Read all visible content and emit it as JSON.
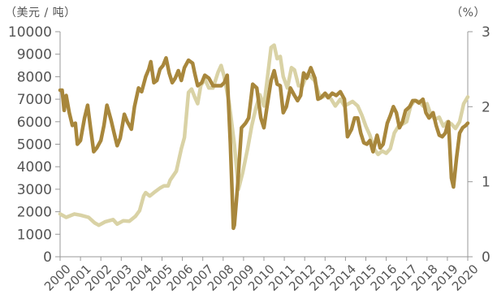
{
  "chart_data": {
    "type": "line",
    "left_unit": "（美元 / 吨）",
    "right_unit": "（%）",
    "y_left": {
      "min": 0,
      "max": 10000,
      "ticks": [
        0,
        1000,
        2000,
        3000,
        4000,
        5000,
        6000,
        7000,
        8000,
        9000,
        10000
      ]
    },
    "y_right": {
      "min": 0,
      "max": 3,
      "ticks": [
        0,
        1,
        2,
        3
      ]
    },
    "x": {
      "min": 2000,
      "max": 2020,
      "ticks": [
        2000,
        2001,
        2002,
        2003,
        2004,
        2005,
        2006,
        2007,
        2008,
        2009,
        2010,
        2011,
        2012,
        2013,
        2014,
        2015,
        2016,
        2017,
        2018,
        2019,
        2020
      ]
    },
    "colors": {
      "series_a": "#d9d2a5",
      "series_b": "#a8873c",
      "axis": "#999999",
      "text": "#555555"
    },
    "series": [
      {
        "axis": "left",
        "color": "#d9d2a5",
        "points": [
          [
            2000.0,
            1900
          ],
          [
            2000.3,
            1750
          ],
          [
            2000.7,
            1900
          ],
          [
            2001.0,
            1850
          ],
          [
            2001.4,
            1750
          ],
          [
            2001.7,
            1500
          ],
          [
            2001.9,
            1400
          ],
          [
            2002.2,
            1550
          ],
          [
            2002.6,
            1650
          ],
          [
            2002.8,
            1450
          ],
          [
            2003.1,
            1600
          ],
          [
            2003.4,
            1580
          ],
          [
            2003.7,
            1800
          ],
          [
            2003.9,
            2050
          ],
          [
            2004.1,
            2700
          ],
          [
            2004.2,
            2850
          ],
          [
            2004.4,
            2700
          ],
          [
            2004.6,
            2850
          ],
          [
            2004.9,
            3050
          ],
          [
            2005.1,
            3150
          ],
          [
            2005.3,
            3150
          ],
          [
            2005.4,
            3400
          ],
          [
            2005.7,
            3800
          ],
          [
            2005.95,
            4800
          ],
          [
            2006.1,
            5300
          ],
          [
            2006.3,
            7300
          ],
          [
            2006.45,
            7450
          ],
          [
            2006.6,
            7100
          ],
          [
            2006.75,
            6800
          ],
          [
            2006.9,
            7600
          ],
          [
            2007.1,
            7900
          ],
          [
            2007.3,
            7500
          ],
          [
            2007.5,
            7500
          ],
          [
            2007.75,
            8200
          ],
          [
            2007.9,
            8500
          ],
          [
            2008.05,
            8000
          ],
          [
            2008.3,
            6800
          ],
          [
            2008.55,
            5000
          ],
          [
            2008.75,
            3000
          ],
          [
            2008.95,
            3700
          ],
          [
            2009.2,
            4800
          ],
          [
            2009.4,
            5800
          ],
          [
            2009.6,
            6600
          ],
          [
            2009.8,
            7200
          ],
          [
            2010.0,
            6700
          ],
          [
            2010.15,
            7800
          ],
          [
            2010.35,
            9300
          ],
          [
            2010.5,
            9400
          ],
          [
            2010.65,
            8800
          ],
          [
            2010.8,
            8900
          ],
          [
            2010.95,
            8000
          ],
          [
            2011.15,
            7500
          ],
          [
            2011.35,
            8400
          ],
          [
            2011.5,
            8300
          ],
          [
            2011.7,
            7600
          ],
          [
            2011.9,
            7600
          ],
          [
            2012.1,
            8100
          ],
          [
            2012.3,
            8000
          ],
          [
            2012.5,
            7800
          ],
          [
            2012.7,
            7200
          ],
          [
            2012.9,
            7100
          ],
          [
            2013.1,
            7200
          ],
          [
            2013.3,
            7000
          ],
          [
            2013.5,
            6700
          ],
          [
            2013.75,
            7000
          ],
          [
            2013.95,
            6700
          ],
          [
            2014.15,
            6800
          ],
          [
            2014.35,
            6900
          ],
          [
            2014.6,
            6700
          ],
          [
            2014.8,
            6300
          ],
          [
            2015.0,
            5800
          ],
          [
            2015.2,
            5400
          ],
          [
            2015.4,
            4800
          ],
          [
            2015.6,
            4550
          ],
          [
            2015.8,
            4700
          ],
          [
            2016.0,
            4600
          ],
          [
            2016.2,
            4800
          ],
          [
            2016.4,
            5500
          ],
          [
            2016.6,
            5800
          ],
          [
            2016.8,
            5900
          ],
          [
            2017.0,
            6000
          ],
          [
            2017.2,
            6700
          ],
          [
            2017.4,
            6950
          ],
          [
            2017.6,
            6900
          ],
          [
            2017.8,
            6700
          ],
          [
            2018.0,
            6800
          ],
          [
            2018.2,
            6300
          ],
          [
            2018.4,
            6100
          ],
          [
            2018.6,
            6200
          ],
          [
            2018.8,
            5800
          ],
          [
            2019.0,
            6000
          ],
          [
            2019.2,
            5900
          ],
          [
            2019.4,
            5700
          ],
          [
            2019.6,
            6000
          ],
          [
            2019.8,
            6800
          ],
          [
            2020.0,
            7100
          ]
        ]
      },
      {
        "axis": "right",
        "color": "#a8873c",
        "points": [
          [
            2000.0,
            2.22
          ],
          [
            2000.1,
            2.22
          ],
          [
            2000.2,
            1.95
          ],
          [
            2000.3,
            2.15
          ],
          [
            2000.45,
            1.92
          ],
          [
            2000.6,
            1.75
          ],
          [
            2000.75,
            1.78
          ],
          [
            2000.85,
            1.5
          ],
          [
            2001.0,
            1.55
          ],
          [
            2001.2,
            1.85
          ],
          [
            2001.35,
            2.02
          ],
          [
            2001.5,
            1.7
          ],
          [
            2001.65,
            1.4
          ],
          [
            2001.8,
            1.45
          ],
          [
            2002.0,
            1.55
          ],
          [
            2002.15,
            1.75
          ],
          [
            2002.3,
            2.02
          ],
          [
            2002.5,
            1.82
          ],
          [
            2002.65,
            1.65
          ],
          [
            2002.8,
            1.48
          ],
          [
            2002.95,
            1.58
          ],
          [
            2003.15,
            1.9
          ],
          [
            2003.3,
            1.8
          ],
          [
            2003.5,
            1.7
          ],
          [
            2003.65,
            2.0
          ],
          [
            2003.85,
            2.25
          ],
          [
            2004.0,
            2.2
          ],
          [
            2004.2,
            2.4
          ],
          [
            2004.35,
            2.5
          ],
          [
            2004.45,
            2.6
          ],
          [
            2004.6,
            2.32
          ],
          [
            2004.75,
            2.35
          ],
          [
            2004.9,
            2.5
          ],
          [
            2005.05,
            2.55
          ],
          [
            2005.2,
            2.65
          ],
          [
            2005.35,
            2.45
          ],
          [
            2005.5,
            2.32
          ],
          [
            2005.65,
            2.38
          ],
          [
            2005.8,
            2.48
          ],
          [
            2005.95,
            2.35
          ],
          [
            2006.1,
            2.52
          ],
          [
            2006.3,
            2.62
          ],
          [
            2006.5,
            2.58
          ],
          [
            2006.6,
            2.45
          ],
          [
            2006.75,
            2.28
          ],
          [
            2006.95,
            2.32
          ],
          [
            2007.1,
            2.42
          ],
          [
            2007.3,
            2.38
          ],
          [
            2007.5,
            2.28
          ],
          [
            2007.7,
            2.28
          ],
          [
            2007.9,
            2.28
          ],
          [
            2008.05,
            2.32
          ],
          [
            2008.2,
            2.42
          ],
          [
            2008.35,
            1.52
          ],
          [
            2008.5,
            0.38
          ],
          [
            2008.55,
            0.42
          ],
          [
            2008.7,
            0.92
          ],
          [
            2008.9,
            1.72
          ],
          [
            2009.1,
            1.78
          ],
          [
            2009.25,
            1.85
          ],
          [
            2009.45,
            2.3
          ],
          [
            2009.65,
            2.25
          ],
          [
            2009.85,
            1.85
          ],
          [
            2010.0,
            1.72
          ],
          [
            2010.15,
            2.0
          ],
          [
            2010.35,
            2.35
          ],
          [
            2010.5,
            2.48
          ],
          [
            2010.65,
            2.3
          ],
          [
            2010.8,
            2.28
          ],
          [
            2010.95,
            1.92
          ],
          [
            2011.1,
            2.0
          ],
          [
            2011.3,
            2.25
          ],
          [
            2011.5,
            2.15
          ],
          [
            2011.65,
            2.08
          ],
          [
            2011.8,
            2.15
          ],
          [
            2011.95,
            2.45
          ],
          [
            2012.1,
            2.38
          ],
          [
            2012.3,
            2.52
          ],
          [
            2012.5,
            2.38
          ],
          [
            2012.65,
            2.1
          ],
          [
            2012.8,
            2.12
          ],
          [
            2013.0,
            2.18
          ],
          [
            2013.15,
            2.12
          ],
          [
            2013.35,
            2.18
          ],
          [
            2013.55,
            2.15
          ],
          [
            2013.75,
            2.2
          ],
          [
            2013.95,
            2.1
          ],
          [
            2014.1,
            1.6
          ],
          [
            2014.3,
            1.7
          ],
          [
            2014.45,
            1.85
          ],
          [
            2014.6,
            1.85
          ],
          [
            2014.75,
            1.65
          ],
          [
            2014.9,
            1.52
          ],
          [
            2015.05,
            1.5
          ],
          [
            2015.2,
            1.55
          ],
          [
            2015.35,
            1.4
          ],
          [
            2015.55,
            1.62
          ],
          [
            2015.7,
            1.45
          ],
          [
            2015.85,
            1.5
          ],
          [
            2016.05,
            1.78
          ],
          [
            2016.2,
            1.88
          ],
          [
            2016.35,
            2.0
          ],
          [
            2016.5,
            1.92
          ],
          [
            2016.65,
            1.72
          ],
          [
            2016.8,
            1.8
          ],
          [
            2016.95,
            1.95
          ],
          [
            2017.15,
            2.0
          ],
          [
            2017.3,
            2.08
          ],
          [
            2017.45,
            2.08
          ],
          [
            2017.6,
            2.05
          ],
          [
            2017.8,
            2.1
          ],
          [
            2017.95,
            1.92
          ],
          [
            2018.1,
            1.85
          ],
          [
            2018.3,
            1.92
          ],
          [
            2018.45,
            1.75
          ],
          [
            2018.6,
            1.62
          ],
          [
            2018.75,
            1.6
          ],
          [
            2018.9,
            1.65
          ],
          [
            2019.05,
            1.8
          ],
          [
            2019.2,
            1.05
          ],
          [
            2019.3,
            0.93
          ],
          [
            2019.45,
            1.32
          ],
          [
            2019.6,
            1.65
          ],
          [
            2019.75,
            1.72
          ],
          [
            2019.9,
            1.75
          ],
          [
            2020.0,
            1.78
          ]
        ]
      }
    ]
  }
}
